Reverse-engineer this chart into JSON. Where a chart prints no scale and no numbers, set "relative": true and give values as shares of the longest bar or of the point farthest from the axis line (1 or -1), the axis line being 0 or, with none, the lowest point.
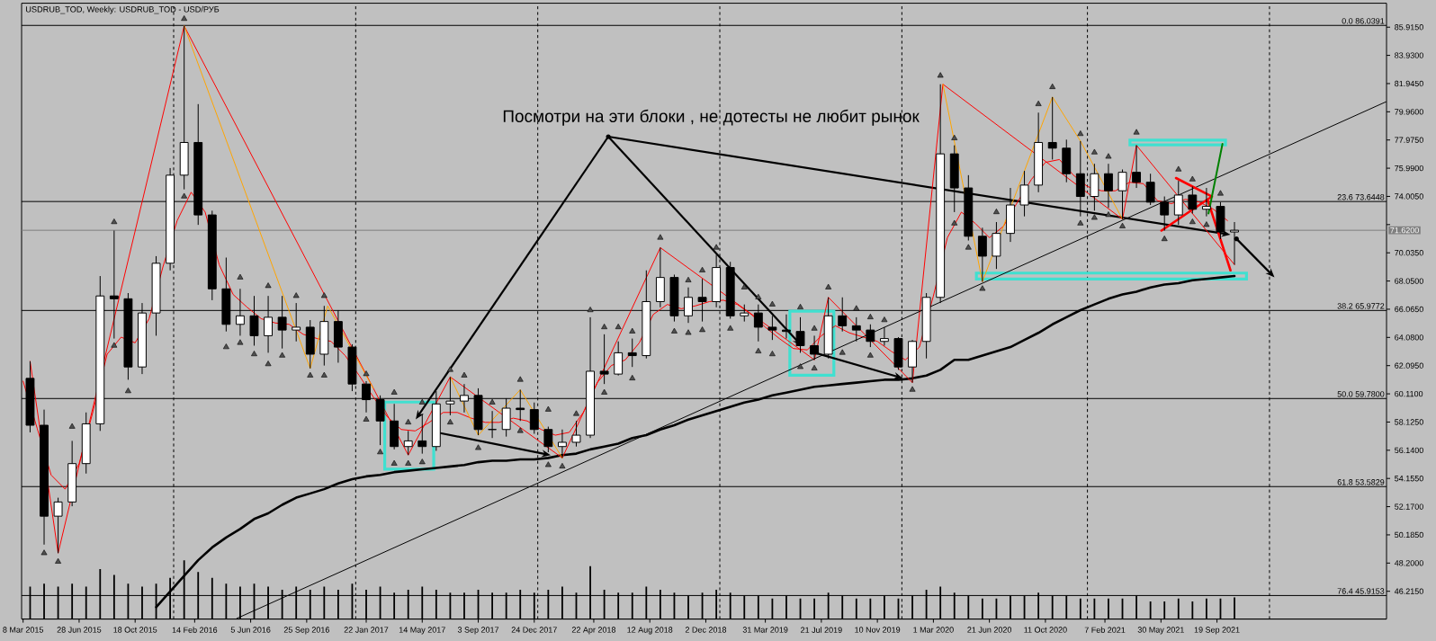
{
  "chart_data": [
    {
      "type": "candlestick",
      "title": "USDRUB_TOD, Weekly: USDRUB_TOD - USD/РУБ",
      "annotations": [
        {
          "text": "Посмотри на эти блоки , не дотесты не любит рынок",
          "x": "2018-05-21",
          "y": 78.21
        }
      ],
      "x": [
        "2015-03-22",
        "2015-04-19",
        "2015-05-17",
        "2015-06-14",
        "2015-07-12",
        "2015-08-09",
        "2015-09-06",
        "2015-10-04",
        "2015-11-01",
        "2015-11-29",
        "2015-12-27",
        "2016-01-24",
        "2016-02-21",
        "2016-03-20",
        "2016-04-17",
        "2016-05-15",
        "2016-06-12",
        "2016-07-10",
        "2016-08-07",
        "2016-09-04",
        "2016-10-02",
        "2016-10-30",
        "2016-11-27",
        "2016-12-25",
        "2017-01-22",
        "2017-02-19",
        "2017-03-19",
        "2017-04-16",
        "2017-05-14",
        "2017-06-11",
        "2017-07-09",
        "2017-08-06",
        "2017-09-03",
        "2017-10-01",
        "2017-10-29",
        "2017-11-26",
        "2017-12-24",
        "2018-01-21",
        "2018-02-18",
        "2018-03-18",
        "2018-04-15",
        "2018-05-13",
        "2018-06-10",
        "2018-07-08",
        "2018-08-05",
        "2018-09-02",
        "2018-09-30",
        "2018-10-28",
        "2018-11-25",
        "2018-12-23",
        "2019-01-20",
        "2019-02-17",
        "2019-03-17",
        "2019-04-14",
        "2019-05-12",
        "2019-06-09",
        "2019-07-07",
        "2019-08-04",
        "2019-09-01",
        "2019-09-29",
        "2019-10-27",
        "2019-11-24",
        "2019-12-22",
        "2020-01-19",
        "2020-02-16",
        "2020-03-15",
        "2020-04-12",
        "2020-05-10",
        "2020-06-07",
        "2020-07-05",
        "2020-08-02",
        "2020-08-30",
        "2020-09-27",
        "2020-10-25",
        "2020-11-22",
        "2020-12-20",
        "2021-01-17",
        "2021-02-14",
        "2021-03-14",
        "2021-04-11",
        "2021-05-09",
        "2021-06-06",
        "2021-07-04",
        "2021-08-01",
        "2021-08-29",
        "2021-09-26",
        "2021-10-24"
      ],
      "ohlc": [
        [
          61.2,
          62.4,
          57.4,
          57.9
        ],
        [
          57.9,
          59.0,
          49.5,
          51.5
        ],
        [
          51.5,
          52.8,
          48.9,
          52.5
        ],
        [
          52.5,
          56.8,
          52.2,
          55.2
        ],
        [
          55.2,
          58.8,
          54.5,
          58.0
        ],
        [
          58.0,
          68.4,
          57.5,
          67.0
        ],
        [
          67.0,
          71.6,
          64.0,
          66.8
        ],
        [
          66.8,
          67.2,
          61.1,
          62.0
        ],
        [
          62.0,
          66.5,
          61.5,
          65.8
        ],
        [
          65.8,
          69.8,
          64.2,
          69.3
        ],
        [
          69.3,
          76.0,
          68.8,
          75.5
        ],
        [
          75.5,
          86.0,
          74.5,
          77.8
        ],
        [
          77.8,
          80.5,
          72.0,
          72.7
        ],
        [
          72.7,
          73.0,
          66.7,
          67.5
        ],
        [
          67.5,
          69.7,
          64.5,
          65.0
        ],
        [
          65.0,
          67.5,
          64.2,
          65.6
        ],
        [
          65.6,
          67.0,
          63.5,
          64.2
        ],
        [
          64.2,
          67.0,
          63.0,
          65.5
        ],
        [
          65.5,
          67.0,
          63.3,
          64.6
        ],
        [
          64.6,
          66.5,
          63.8,
          64.8
        ],
        [
          64.8,
          65.3,
          61.9,
          62.9
        ],
        [
          62.9,
          66.3,
          62.1,
          65.2
        ],
        [
          65.2,
          66.0,
          62.3,
          63.4
        ],
        [
          63.4,
          63.6,
          60.3,
          60.8
        ],
        [
          60.8,
          61.0,
          58.8,
          59.7
        ],
        [
          59.7,
          60.0,
          56.5,
          58.2
        ],
        [
          58.2,
          59.4,
          56.2,
          56.4
        ],
        [
          56.4,
          57.5,
          55.8,
          56.8
        ],
        [
          56.8,
          58.7,
          55.9,
          56.4
        ],
        [
          56.4,
          60.3,
          56.1,
          59.4
        ],
        [
          59.4,
          61.3,
          58.6,
          59.6
        ],
        [
          59.6,
          60.8,
          58.8,
          60.0
        ],
        [
          60.0,
          60.5,
          57.2,
          57.6
        ],
        [
          57.6,
          58.9,
          57.0,
          57.6
        ],
        [
          57.6,
          59.8,
          57.1,
          59.1
        ],
        [
          59.1,
          60.4,
          58.2,
          59.0
        ],
        [
          59.0,
          59.5,
          57.3,
          57.6
        ],
        [
          57.6,
          57.8,
          56.0,
          56.4
        ],
        [
          56.4,
          57.6,
          55.6,
          56.7
        ],
        [
          56.7,
          58.2,
          56.4,
          57.2
        ],
        [
          57.2,
          65.5,
          57.0,
          61.7
        ],
        [
          61.7,
          64.3,
          60.8,
          61.5
        ],
        [
          61.5,
          63.8,
          61.4,
          63.0
        ],
        [
          63.0,
          64.0,
          62.0,
          62.8
        ],
        [
          62.8,
          68.8,
          62.6,
          66.6
        ],
        [
          66.6,
          70.4,
          66.2,
          68.3
        ],
        [
          68.3,
          68.5,
          65.2,
          65.6
        ],
        [
          65.6,
          67.6,
          65.1,
          66.9
        ],
        [
          66.9,
          68.2,
          65.2,
          66.6
        ],
        [
          66.6,
          69.9,
          66.2,
          69.0
        ],
        [
          69.0,
          69.4,
          65.4,
          65.6
        ],
        [
          65.6,
          66.4,
          65.2,
          65.8
        ],
        [
          65.8,
          66.4,
          63.8,
          64.8
        ],
        [
          64.8,
          65.6,
          63.9,
          64.6
        ],
        [
          64.6,
          65.7,
          64.0,
          64.5
        ],
        [
          64.5,
          65.5,
          63.0,
          63.5
        ],
        [
          63.5,
          64.2,
          62.5,
          62.9
        ],
        [
          62.9,
          66.9,
          62.6,
          65.6
        ],
        [
          65.6,
          66.9,
          64.5,
          64.9
        ],
        [
          64.9,
          65.5,
          63.8,
          64.6
        ],
        [
          64.6,
          65.0,
          63.4,
          63.8
        ],
        [
          63.8,
          64.8,
          63.5,
          64.0
        ],
        [
          64.0,
          64.1,
          61.8,
          62.0
        ],
        [
          62.0,
          63.9,
          60.9,
          63.8
        ],
        [
          63.8,
          67.2,
          62.6,
          66.9
        ],
        [
          66.9,
          81.9,
          66.5,
          77.0
        ],
        [
          77.0,
          77.6,
          72.9,
          74.6
        ],
        [
          74.6,
          75.5,
          70.9,
          71.2
        ],
        [
          71.2,
          71.8,
          68.0,
          69.8
        ],
        [
          69.8,
          72.2,
          68.9,
          71.4
        ],
        [
          71.4,
          74.6,
          70.8,
          73.4
        ],
        [
          73.4,
          75.8,
          72.6,
          74.8
        ],
        [
          74.8,
          79.9,
          74.3,
          77.8
        ],
        [
          77.8,
          81.0,
          76.6,
          77.4
        ],
        [
          77.4,
          78.0,
          75.0,
          75.6
        ],
        [
          75.6,
          77.9,
          72.6,
          74.0
        ],
        [
          74.0,
          76.3,
          73.0,
          75.6
        ],
        [
          75.6,
          76.3,
          73.2,
          74.4
        ],
        [
          74.4,
          75.9,
          72.4,
          75.7
        ],
        [
          75.7,
          77.6,
          74.6,
          75.0
        ],
        [
          75.0,
          75.6,
          73.4,
          73.6
        ],
        [
          73.6,
          74.0,
          71.6,
          72.7
        ],
        [
          72.7,
          75.1,
          72.0,
          74.1
        ],
        [
          74.1,
          74.7,
          72.8,
          73.1
        ],
        [
          73.1,
          74.6,
          72.6,
          73.3
        ],
        [
          73.3,
          73.6,
          71.0,
          71.5
        ],
        [
          71.5,
          72.2,
          69.2,
          71.62
        ]
      ],
      "color": "#000000",
      "series": [
        {
          "type": "line",
          "color": "#ff0000",
          "x": [
            "2015-03-08",
            "2015-04-05",
            "2015-05-03",
            "2015-05-31",
            "2015-06-28",
            "2015-07-26",
            "2015-08-23",
            "2015-09-20",
            "2015-10-18",
            "2015-11-15",
            "2015-12-13",
            "2016-01-10",
            "2016-02-07",
            "2016-03-06",
            "2016-04-03",
            "2016-05-01",
            "2016-05-29",
            "2016-06-26",
            "2016-07-24",
            "2016-08-21",
            "2016-09-18",
            "2016-10-16",
            "2016-11-13",
            "2016-12-11",
            "2017-01-08",
            "2017-02-05",
            "2017-03-05",
            "2017-04-02",
            "2017-04-30",
            "2017-05-28",
            "2017-06-25",
            "2017-07-23",
            "2017-08-20",
            "2017-09-17",
            "2017-10-15",
            "2017-11-12",
            "2017-12-10",
            "2018-01-07",
            "2018-02-04",
            "2018-03-04",
            "2018-04-01",
            "2018-04-29",
            "2018-05-27",
            "2018-06-24",
            "2018-07-22",
            "2018-08-19",
            "2018-09-16",
            "2018-10-14",
            "2018-11-11",
            "2018-12-09",
            "2019-01-06",
            "2019-02-03",
            "2019-03-03",
            "2019-03-31",
            "2019-04-28",
            "2019-05-26",
            "2019-06-23",
            "2019-07-21",
            "2019-08-18",
            "2019-09-15",
            "2019-10-13",
            "2019-11-10",
            "2019-12-08",
            "2020-01-05",
            "2020-02-02",
            "2020-03-01",
            "2020-03-29",
            "2020-04-26",
            "2020-05-24",
            "2020-06-21",
            "2020-07-19",
            "2020-08-16",
            "2020-09-13",
            "2020-10-11",
            "2020-11-08",
            "2020-12-06",
            "2021-01-03",
            "2021-01-31",
            "2021-02-28",
            "2021-03-28",
            "2021-04-25",
            "2021-05-23",
            "2021-06-20",
            "2021-07-18",
            "2021-08-15",
            "2021-09-12",
            "2021-10-10"
          ],
          "values": [
            61.0,
            57.7,
            54.4,
            53.4,
            55.2,
            58.9,
            62.9,
            64.1,
            63.7,
            65.4,
            69.1,
            72.3,
            74.3,
            72.9,
            69.2,
            67.1,
            66.2,
            65.4,
            65.1,
            65.0,
            64.3,
            64.0,
            63.8,
            62.8,
            61.4,
            59.9,
            58.5,
            57.6,
            57.5,
            58.1,
            58.8,
            58.8,
            58.4,
            58.1,
            58.1,
            58.4,
            58.2,
            57.6,
            57.2,
            57.4,
            58.8,
            60.9,
            62.1,
            62.5,
            63.7,
            65.7,
            66.4,
            66.1,
            66.3,
            66.6,
            66.7,
            66.4,
            65.7,
            64.8,
            64.0,
            63.3,
            63.2,
            64.2,
            64.9,
            64.4,
            64.1,
            63.8,
            63.1,
            62.5,
            63.4,
            67.0,
            71.1,
            72.9,
            72.1,
            71.1,
            71.9,
            73.6,
            75.2,
            76.4,
            76.6,
            75.5,
            74.7,
            74.4,
            74.4,
            75.0,
            74.9,
            73.7,
            73.5,
            73.8,
            73.6,
            73.1,
            72.3
          ]
        },
        {
          "type": "line",
          "color": "#000000",
          "values": [
            null,
            null,
            null,
            null,
            null,
            null,
            null,
            null,
            null,
            45.1,
            46.2,
            47.3,
            48.4,
            49.3,
            50.0,
            50.6,
            51.3,
            51.7,
            52.3,
            52.8,
            53.1,
            53.4,
            53.8,
            54.1,
            54.3,
            54.4,
            54.6,
            54.7,
            54.8,
            54.9,
            55.0,
            55.1,
            55.3,
            55.4,
            55.4,
            55.5,
            55.5,
            55.6,
            55.8,
            55.9,
            56.2,
            56.4,
            56.6,
            57.0,
            57.2,
            57.6,
            57.9,
            58.3,
            58.6,
            58.9,
            59.2,
            59.5,
            59.7,
            60.0,
            60.2,
            60.4,
            60.6,
            60.7,
            60.8,
            60.9,
            61.0,
            61.1,
            61.1,
            61.2,
            61.4,
            61.8,
            62.5,
            62.5,
            62.8,
            63.1,
            63.4,
            63.9,
            64.4,
            65.0,
            65.5,
            66.0,
            66.4,
            66.8,
            67.1,
            67.3,
            67.6,
            67.8,
            67.9,
            68.1,
            68.2,
            68.3,
            68.4
          ]
        },
        {
          "type": "line",
          "color": "#ff0000",
          "x": [
            "2015-03-22",
            "2015-05-17",
            "2016-01-24",
            "2017-04-16",
            "2017-07-09",
            "2018-02-18",
            "2018-09-02",
            "2019-07-07",
            "2019-08-04",
            "2020-01-19",
            "2020-03-20",
            "2021-03-14",
            "2021-04-11",
            "2021-10-24"
          ],
          "values": [
            62.4,
            48.9,
            86.0,
            55.8,
            61.3,
            55.6,
            70.4,
            62.5,
            66.9,
            60.9,
            81.9,
            72.4,
            77.6,
            69.2
          ]
        },
        {
          "type": "line",
          "color": "#ffa500",
          "x": [
            "2016-01-24",
            "2016-10-02",
            "2016-11-06",
            "2017-02-05",
            "2017-05-01",
            "2017-07-09",
            "2017-09-03",
            "2017-11-26",
            "2018-02-18",
            "2019-01-01",
            "2020-03-20",
            "2020-06-07",
            "2020-10-25",
            "2020-12-20",
            "2021-03-14"
          ],
          "values": [
            86.0,
            61.9,
            66.3,
            60.5,
            null,
            61.3,
            57.2,
            60.4,
            55.6,
            null,
            81.9,
            68.0,
            81.0,
            77.9,
            72.4
          ]
        },
        {
          "type": "line",
          "color": "#000000",
          "x": [
            "2016-05-08",
            "2022-08-24"
          ],
          "values": [
            44.3,
            80.68
          ]
        },
        {
          "type": "scatter",
          "color": "#505050",
          "marker": "triangle",
          "x": [
            "2015-06-14",
            "2015-09-06",
            "2016-01-24",
            "2016-05-15",
            "2016-07-10",
            "2016-09-04",
            "2016-10-30",
            "2017-01-22",
            "2017-03-19",
            "2017-04-16",
            "2017-05-14",
            "2017-07-09",
            "2017-08-06",
            "2017-10-01",
            "2017-11-26",
            "2018-01-21",
            "2018-03-18",
            "2018-04-15",
            "2018-05-13",
            "2018-06-10",
            "2018-07-08",
            "2018-09-02",
            "2018-10-28",
            "2018-11-25",
            "2018-12-23",
            "2019-02-17",
            "2019-03-17",
            "2019-04-14",
            "2019-06-09",
            "2019-07-07",
            "2019-08-04",
            "2019-09-29",
            "2019-10-27",
            "2019-11-24",
            "2020-03-15",
            "2020-04-12",
            "2020-07-05",
            "2020-09-27",
            "2020-10-25",
            "2020-12-20",
            "2021-01-17",
            "2021-02-14",
            "2021-04-11",
            "2021-07-04",
            "2021-08-01",
            "2021-09-26"
          ],
          "values": [
            57.8,
            72.2,
            86.5,
            68.3,
            67.7,
            67.0,
            67.0,
            61.5,
            60.2,
            58.1,
            59.5,
            61.8,
            61.4,
            59.5,
            61.1,
            59.0,
            58.7,
            66.0,
            64.8,
            64.8,
            64.5,
            71.1,
            68.1,
            68.8,
            70.4,
            67.6,
            66.9,
            66.4,
            66.2,
            64.7,
            67.6,
            66.1,
            65.5,
            65.3,
            82.5,
            78.1,
            72.9,
            80.5,
            81.7,
            78.4,
            77.1,
            76.8,
            78.5,
            75.9,
            75.2,
            74.2
          ]
        },
        {
          "type": "scatter",
          "color": "#505050",
          "marker": "triangle",
          "x": [
            "2015-04-19",
            "2015-05-17",
            "2015-09-06",
            "2015-10-04",
            "2016-01-24",
            "2016-04-17",
            "2016-05-15",
            "2016-06-12",
            "2016-07-10",
            "2016-08-07",
            "2016-10-02",
            "2016-10-30",
            "2017-01-22",
            "2017-02-19",
            "2017-03-19",
            "2017-04-16",
            "2017-05-14",
            "2017-07-09",
            "2017-09-03",
            "2017-11-26",
            "2018-01-21",
            "2018-02-18",
            "2018-05-13",
            "2018-07-08",
            "2018-09-30",
            "2018-10-28",
            "2018-11-25",
            "2019-01-20",
            "2019-03-17",
            "2019-04-14",
            "2019-06-09",
            "2019-07-07",
            "2019-09-01",
            "2019-10-27",
            "2020-01-19",
            "2020-04-12",
            "2020-05-10",
            "2020-06-07",
            "2020-12-20",
            "2021-01-17",
            "2021-02-14",
            "2021-03-14",
            "2021-06-06",
            "2021-08-01",
            "2021-08-29"
          ],
          "values": [
            48.9,
            48.3,
            63.5,
            60.3,
            74.0,
            63.4,
            63.7,
            62.9,
            62.2,
            62.8,
            61.4,
            61.4,
            58.3,
            56.0,
            55.2,
            55.2,
            55.3,
            58.1,
            56.3,
            57.5,
            55.1,
            55.0,
            60.2,
            61.2,
            64.5,
            64.4,
            64.6,
            64.7,
            63.1,
            62.9,
            62.0,
            61.9,
            63.0,
            62.8,
            60.4,
            72.1,
            70.4,
            67.5,
            72.1,
            72.5,
            72.7,
            71.9,
            71.0,
            72.2,
            72.0
          ]
        },
        {
          "type": "line",
          "color": "#ff0000",
          "x": [
            "2021-06-29",
            "2021-09-09",
            "2021-05-31"
          ],
          "values": [
            75.3,
            74.0,
            71.6
          ]
        },
        {
          "type": "line",
          "color": "#ff0000",
          "x": [
            "2021-09-01",
            "2021-10-16"
          ],
          "values": [
            73.7,
            68.8
          ]
        },
        {
          "type": "line",
          "color": "#008000",
          "x": [
            "2021-09-02",
            "2021-09-30"
          ],
          "values": [
            72.8,
            77.7
          ]
        }
      ],
      "xlim": [
        "2015-03-05",
        "2022-08-24"
      ],
      "xticks": [
        {
          "value": "2015-03-08",
          "label": "8 Mar 2015"
        },
        {
          "value": "2015-06-28",
          "label": "28 Jun 2015"
        },
        {
          "value": "2015-10-18",
          "label": "18 Oct 2015"
        },
        {
          "value": "2016-02-14",
          "label": "14 Feb 2016"
        },
        {
          "value": "2016-06-05",
          "label": "5 Jun 2016"
        },
        {
          "value": "2016-09-25",
          "label": "25 Sep 2016"
        },
        {
          "value": "2017-01-22",
          "label": "22 Jan 2017"
        },
        {
          "value": "2017-05-14",
          "label": "14 May 2017"
        },
        {
          "value": "2017-09-03",
          "label": "3 Sep 2017"
        },
        {
          "value": "2017-12-24",
          "label": "24 Dec 2017"
        },
        {
          "value": "2018-04-22",
          "label": "22 Apr 2018"
        },
        {
          "value": "2018-08-12",
          "label": "12 Aug 2018"
        },
        {
          "value": "2018-12-02",
          "label": "2 Dec 2018"
        },
        {
          "value": "2019-03-31",
          "label": "31 Mar 2019"
        },
        {
          "value": "2019-07-21",
          "label": "21 Jul 2019"
        },
        {
          "value": "2019-11-10",
          "label": "10 Nov 2019"
        },
        {
          "value": "2020-03-01",
          "label": "1 Mar 2020"
        },
        {
          "value": "2020-06-21",
          "label": "21 Jun 2020"
        },
        {
          "value": "2020-10-11",
          "label": "11 Oct 2020"
        },
        {
          "value": "2021-02-07",
          "label": "7 Feb 2021"
        },
        {
          "value": "2021-05-30",
          "label": "30 May 2021"
        },
        {
          "value": "2021-09-19",
          "label": "19 Sep 2021"
        }
      ],
      "ylim": [
        44.26,
        87.6
      ],
      "yticks": [
        {
          "value": 46.215,
          "label": "46.2150"
        },
        {
          "value": 48.2,
          "label": "48.2000"
        },
        {
          "value": 50.185,
          "label": "50.1850"
        },
        {
          "value": 52.17,
          "label": "52.1700"
        },
        {
          "value": 54.155,
          "label": "54.1550"
        },
        {
          "value": 56.14,
          "label": "56.1400"
        },
        {
          "value": 58.125,
          "label": "58.1250"
        },
        {
          "value": 60.11,
          "label": "60.1100"
        },
        {
          "value": 62.095,
          "label": "62.0950"
        },
        {
          "value": 64.08,
          "label": "64.0800"
        },
        {
          "value": 66.065,
          "label": "66.0650"
        },
        {
          "value": 68.05,
          "label": "68.0500"
        },
        {
          "value": 70.035,
          "label": "70.0350"
        },
        {
          "value": 72.02,
          "label": null
        },
        {
          "value": 74.005,
          "label": "74.0050"
        },
        {
          "value": 75.99,
          "label": "75.9900"
        },
        {
          "value": 77.975,
          "label": "77.9750"
        },
        {
          "value": 79.96,
          "label": "79.9600"
        },
        {
          "value": 81.945,
          "label": "81.9450"
        },
        {
          "value": 83.93,
          "label": "83.9300"
        },
        {
          "value": 85.915,
          "label": "85.9150"
        }
      ],
      "ref_lines": [
        {
          "axis": "y",
          "value": 86.0391,
          "label": "0.0 86.0391"
        },
        {
          "axis": "y",
          "value": 73.6448,
          "label": "23.6 73.6448"
        },
        {
          "axis": "y",
          "value": 65.9772,
          "label": "38.2 65.9772"
        },
        {
          "axis": "y",
          "value": 59.78,
          "label": "50.0 59.7800"
        },
        {
          "axis": "y",
          "value": 53.5829,
          "label": "61.8 53.5829"
        },
        {
          "axis": "y",
          "value": 45.9153,
          "label": "76.4 45.9153"
        },
        {
          "axis": "y",
          "value": 71.62,
          "label": "71.6200",
          "color": "#808080"
        },
        {
          "axis": "x",
          "value": "2016-01-03",
          "line_style": "dashed"
        },
        {
          "axis": "x",
          "value": "2017-01-01",
          "line_style": "dashed"
        },
        {
          "axis": "x",
          "value": "2017-12-31",
          "line_style": "dashed"
        },
        {
          "axis": "x",
          "value": "2018-12-30",
          "line_style": "dashed"
        },
        {
          "axis": "x",
          "value": "2019-12-29",
          "line_style": "dashed"
        },
        {
          "axis": "x",
          "value": "2021-01-03",
          "line_style": "dashed"
        },
        {
          "axis": "x",
          "value": "2022-01-02",
          "line_style": "dashed"
        }
      ]
    },
    {
      "type": "bar",
      "relative": true,
      "x": [
        "2015-03-22",
        "2015-04-19",
        "2015-05-17",
        "2015-06-14",
        "2015-07-12",
        "2015-08-09",
        "2015-09-06",
        "2015-10-04",
        "2015-11-01",
        "2015-11-29",
        "2015-12-27",
        "2016-01-24",
        "2016-02-21",
        "2016-03-20",
        "2016-04-17",
        "2016-05-15",
        "2016-06-12",
        "2016-07-10",
        "2016-08-07",
        "2016-09-04",
        "2016-10-02",
        "2016-10-30",
        "2016-11-27",
        "2016-12-25",
        "2017-01-22",
        "2017-02-19",
        "2017-03-19",
        "2017-04-16",
        "2017-05-14",
        "2017-06-11",
        "2017-07-09",
        "2017-08-06",
        "2017-09-03",
        "2017-10-01",
        "2017-10-29",
        "2017-11-26",
        "2017-12-24",
        "2018-01-21",
        "2018-02-18",
        "2018-03-18",
        "2018-04-15",
        "2018-05-13",
        "2018-06-10",
        "2018-07-08",
        "2018-08-05",
        "2018-09-02",
        "2018-09-30",
        "2018-10-28",
        "2018-11-25",
        "2018-12-23",
        "2019-01-20",
        "2019-02-17",
        "2019-03-17",
        "2019-04-14",
        "2019-05-12",
        "2019-06-09",
        "2019-07-07",
        "2019-08-04",
        "2019-09-01",
        "2019-09-29",
        "2019-10-27",
        "2019-11-24",
        "2019-12-22",
        "2020-01-19",
        "2020-02-16",
        "2020-03-15",
        "2020-04-12",
        "2020-05-10",
        "2020-06-07",
        "2020-07-05",
        "2020-08-02",
        "2020-08-30",
        "2020-09-27",
        "2020-10-25",
        "2020-11-22",
        "2020-12-20",
        "2021-01-17",
        "2021-02-14",
        "2021-03-14",
        "2021-04-11",
        "2021-05-09",
        "2021-06-06",
        "2021-07-04",
        "2021-08-01",
        "2021-08-29",
        "2021-09-26",
        "2021-10-24"
      ],
      "values": [
        0.55,
        0.6,
        0.55,
        0.6,
        0.55,
        0.85,
        0.75,
        0.6,
        0.55,
        0.6,
        0.7,
        1,
        0.8,
        0.7,
        0.6,
        0.55,
        0.6,
        0.55,
        0.5,
        0.55,
        0.5,
        0.55,
        0.5,
        0.6,
        0.5,
        0.55,
        0.45,
        0.5,
        0.55,
        0.5,
        0.45,
        0.45,
        0.5,
        0.45,
        0.45,
        0.5,
        0.45,
        0.5,
        0.55,
        0.45,
        0.9,
        0.5,
        0.45,
        0.45,
        0.55,
        0.5,
        0.45,
        0.4,
        0.45,
        0.5,
        0.45,
        0.4,
        0.4,
        0.35,
        0.4,
        0.35,
        0.35,
        0.45,
        0.4,
        0.35,
        0.35,
        0.4,
        0.35,
        0.4,
        0.5,
        0.55,
        0.45,
        0.4,
        0.35,
        0.35,
        0.4,
        0.4,
        0.45,
        0.4,
        0.4,
        0.35,
        0.35,
        0.35,
        0.35,
        0.4,
        0.3,
        0.3,
        0.35,
        0.3,
        0.35,
        0.35,
        0.37
      ],
      "color": "#000000",
      "xlim": [
        "2015-03-05",
        "2022-08-24"
      ],
      "tick_labels": false
    }
  ]
}
